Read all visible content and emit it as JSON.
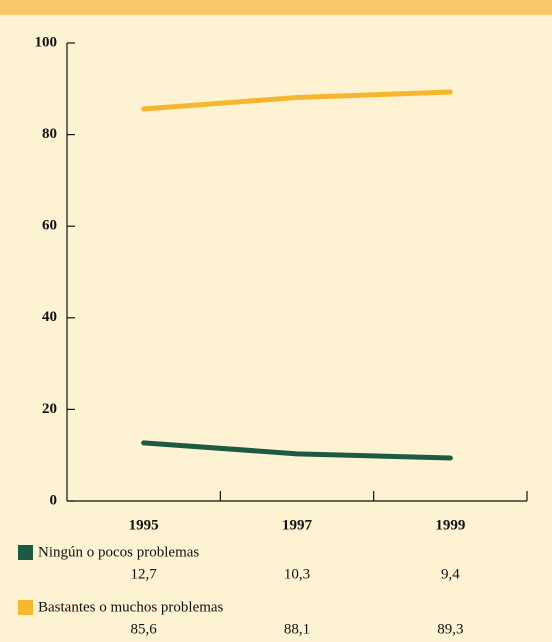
{
  "chart_data": {
    "type": "line",
    "categories": [
      "1995",
      "1997",
      "1999"
    ],
    "series": [
      {
        "name": "Ningún o pocos problemas",
        "color": "#1d5a44",
        "values": [
          12.7,
          10.3,
          9.4
        ],
        "value_labels": [
          "12,7",
          "10,3",
          "9,4"
        ]
      },
      {
        "name": "Bastantes o muchos problemas",
        "color": "#f6b730",
        "values": [
          85.6,
          88.1,
          89.3
        ],
        "value_labels": [
          "85,6",
          "88,1",
          "89,3"
        ]
      }
    ],
    "ylim": [
      0,
      100
    ],
    "yticks": [
      0,
      20,
      40,
      60,
      80,
      100
    ]
  }
}
